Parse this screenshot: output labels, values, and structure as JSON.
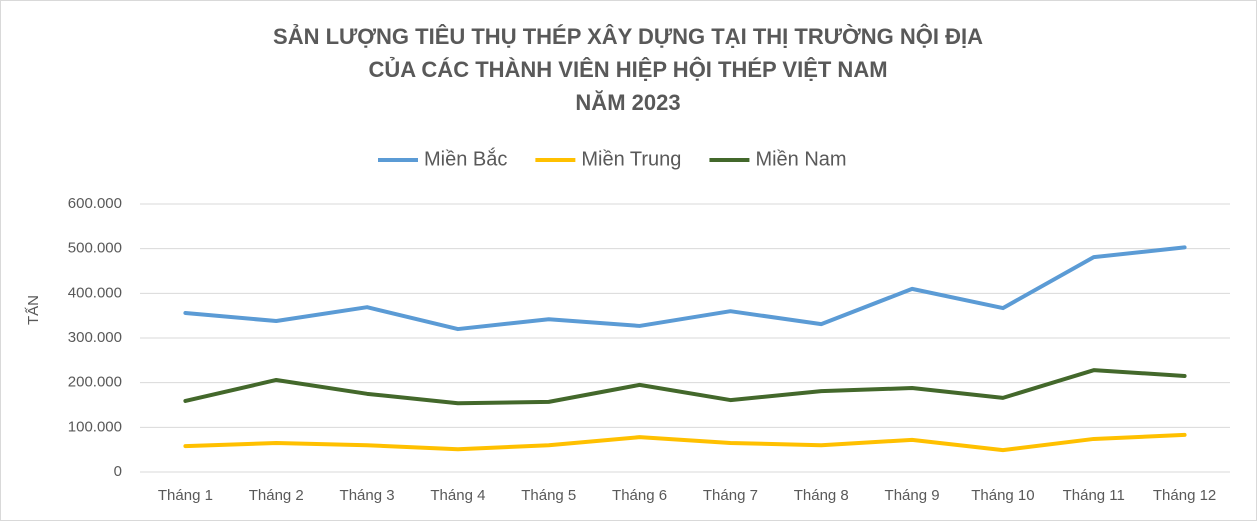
{
  "chart_data": {
    "type": "line",
    "title": [
      "SẢN LƯỢNG TIÊU THỤ THÉP XÂY DỰNG TẠI THỊ TRƯỜNG NỘI ĐỊA",
      "CỦA CÁC THÀNH VIÊN HIỆP HỘI THÉP VIỆT NAM",
      "NĂM 2023"
    ],
    "ylabel": "TẤN",
    "categories": [
      "Tháng 1",
      "Tháng 2",
      "Tháng 3",
      "Tháng 4",
      "Tháng 5",
      "Tháng 6",
      "Tháng 7",
      "Tháng 8",
      "Tháng 9",
      "Tháng 10",
      "Tháng 11",
      "Tháng 12"
    ],
    "series": [
      {
        "name": "Miền Bắc",
        "color": "#5b9bd5",
        "values": [
          356000,
          338000,
          369000,
          320000,
          342000,
          327000,
          360000,
          331000,
          410000,
          367000,
          481000,
          503000
        ]
      },
      {
        "name": "Miền Trung",
        "color": "#ffc000",
        "values": [
          58000,
          65000,
          60000,
          51000,
          60000,
          78000,
          65000,
          60000,
          72000,
          49000,
          74000,
          83000
        ]
      },
      {
        "name": "Miền Nam",
        "color": "#43682b",
        "values": [
          159000,
          206000,
          175000,
          154000,
          157000,
          195000,
          161000,
          181000,
          188000,
          166000,
          228000,
          215000
        ]
      }
    ],
    "ylim": [
      0,
      600000
    ],
    "yticks": [
      0,
      {
        "value": 100000,
        "label": "100.000"
      },
      {
        "value": 200000,
        "label": "200.000"
      },
      {
        "value": 300000,
        "label": "300.000"
      },
      {
        "value": 400000,
        "label": "400.000"
      },
      {
        "value": 500000,
        "label": "500.000"
      },
      {
        "value": 600000,
        "label": "600.000"
      }
    ],
    "grid": true,
    "legend": "top"
  }
}
